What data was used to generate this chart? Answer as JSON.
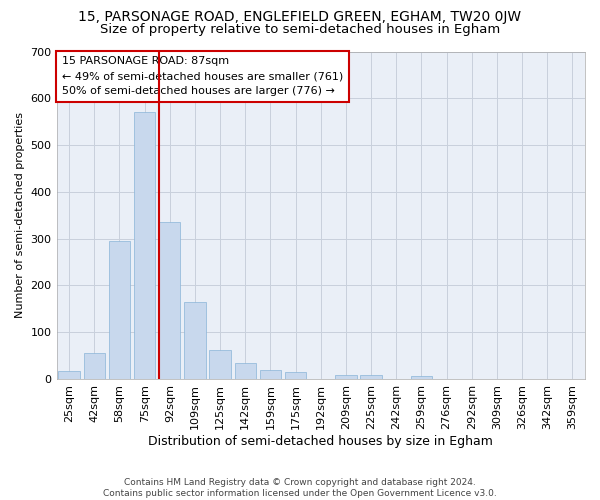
{
  "title": "15, PARSONAGE ROAD, ENGLEFIELD GREEN, EGHAM, TW20 0JW",
  "subtitle": "Size of property relative to semi-detached houses in Egham",
  "xlabel": "Distribution of semi-detached houses by size in Egham",
  "ylabel": "Number of semi-detached properties",
  "footer1": "Contains HM Land Registry data © Crown copyright and database right 2024.",
  "footer2": "Contains public sector information licensed under the Open Government Licence v3.0.",
  "categories": [
    "25sqm",
    "42sqm",
    "58sqm",
    "75sqm",
    "92sqm",
    "109sqm",
    "125sqm",
    "142sqm",
    "159sqm",
    "175sqm",
    "192sqm",
    "209sqm",
    "225sqm",
    "242sqm",
    "259sqm",
    "276sqm",
    "292sqm",
    "309sqm",
    "326sqm",
    "342sqm",
    "359sqm"
  ],
  "values": [
    18,
    55,
    295,
    570,
    335,
    165,
    62,
    35,
    20,
    14,
    0,
    8,
    8,
    0,
    7,
    0,
    0,
    0,
    0,
    0,
    0
  ],
  "bar_color": "#c8d8ed",
  "bar_edge_color": "#8ab4d8",
  "grid_color": "#c8d0dc",
  "background_color": "#eaeff7",
  "vline_x": 4.0,
  "vline_color": "#cc0000",
  "annotation_title": "15 PARSONAGE ROAD: 87sqm",
  "annotation_line1": "← 49% of semi-detached houses are smaller (761)",
  "annotation_line2": "50% of semi-detached houses are larger (776) →",
  "annotation_box_color": "#ffffff",
  "annotation_box_edge": "#cc0000",
  "ylim": [
    0,
    700
  ],
  "yticks": [
    0,
    100,
    200,
    300,
    400,
    500,
    600,
    700
  ],
  "title_fontsize": 10,
  "subtitle_fontsize": 9.5,
  "xlabel_fontsize": 9,
  "ylabel_fontsize": 8,
  "tick_fontsize": 8,
  "annot_fontsize": 8
}
